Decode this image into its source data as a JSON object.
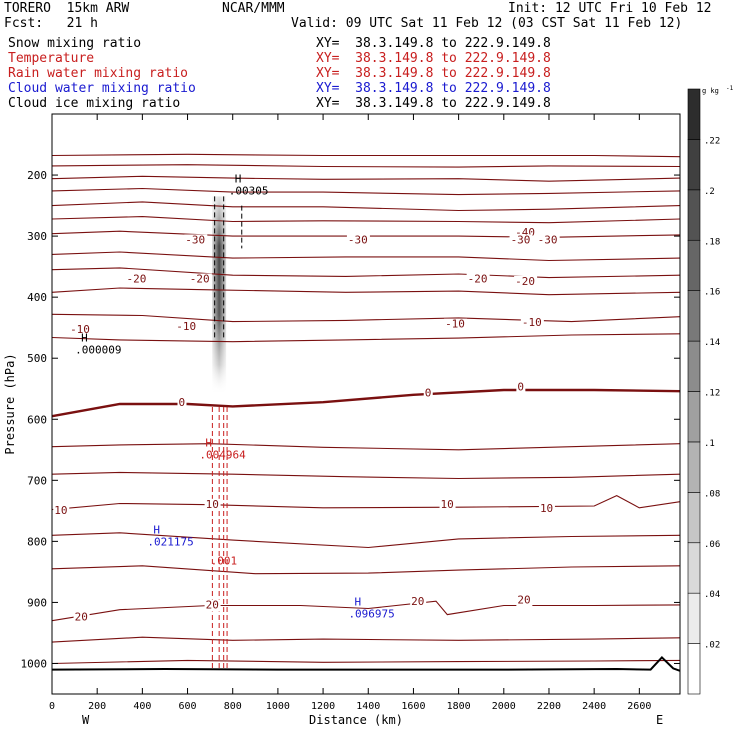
{
  "header": {
    "model": "TORERO  15km ARW",
    "center": "NCAR/MMM",
    "init": "Init: 12 UTC Fri 10 Feb 12",
    "fcst": "Fcst:   21 h",
    "valid": "Valid: 09 UTC Sat 11 Feb 12 (03 CST Sat 11 Feb 12)"
  },
  "fields": [
    {
      "label": "Snow mixing ratio",
      "xy": "XY=  38.3.149.8 to 222.9.149.8",
      "color": "#000000"
    },
    {
      "label": "Temperature",
      "xy": "XY=  38.3.149.8 to 222.9.149.8",
      "color": "#c81e1e"
    },
    {
      "label": "Rain water mixing ratio",
      "xy": "XY=  38.3.149.8 to 222.9.149.8",
      "color": "#c81e1e"
    },
    {
      "label": "Cloud water mixing ratio",
      "xy": "XY=  38.3.149.8 to 222.9.149.8",
      "color": "#1a1ad0"
    },
    {
      "label": "Cloud ice mixing ratio",
      "xy": "XY=  38.3.149.8 to 222.9.149.8",
      "color": "#000000"
    }
  ],
  "chart_data": {
    "type": "contour cross-section",
    "xlabel": "Distance (km)",
    "ylabel": "Pressure (hPa)",
    "xlim": [
      0,
      2780
    ],
    "ylim": [
      1050,
      100
    ],
    "x_ticks": [
      0,
      200,
      400,
      600,
      800,
      1000,
      1200,
      1400,
      1600,
      1800,
      2000,
      2200,
      2400,
      2600
    ],
    "y_ticks": [
      200,
      300,
      400,
      500,
      600,
      700,
      800,
      900,
      1000
    ],
    "x_end_labels": {
      "left": "W",
      "right": "E"
    },
    "colorbar": {
      "unit": "g kg",
      "unit_exp": "-1",
      "ticks": [
        ".02",
        ".04",
        ".06",
        ".08",
        ".1",
        ".12",
        ".14",
        ".16",
        ".18",
        ".2",
        ".22"
      ],
      "tick_values": [
        0.02,
        0.04,
        0.06,
        0.08,
        0.1,
        0.12,
        0.14,
        0.16,
        0.18,
        0.2,
        0.22
      ],
      "range": [
        0,
        0.24
      ]
    },
    "temperature_isotherms": [
      {
        "label": "-40",
        "points": [
          [
            0,
            168
          ],
          [
            600,
            166
          ],
          [
            1200,
            168
          ],
          [
            1800,
            168
          ],
          [
            2400,
            168
          ],
          [
            2780,
            170
          ]
        ]
      },
      {
        "label": "-40",
        "points": [
          [
            0,
            185
          ],
          [
            600,
            183
          ],
          [
            1200,
            186
          ],
          [
            1800,
            187
          ],
          [
            2200,
            185
          ],
          [
            2780,
            186
          ]
        ]
      },
      {
        "label": "-40",
        "points": [
          [
            0,
            206
          ],
          [
            400,
            202
          ],
          [
            800,
            205
          ],
          [
            1200,
            207
          ],
          [
            1800,
            206
          ],
          [
            2200,
            210
          ],
          [
            2780,
            205
          ]
        ]
      },
      {
        "label": "-40",
        "points": [
          [
            0,
            226
          ],
          [
            400,
            222
          ],
          [
            800,
            228
          ],
          [
            1200,
            228
          ],
          [
            1800,
            232
          ],
          [
            2200,
            230
          ],
          [
            2780,
            226
          ]
        ]
      },
      {
        "label": "-30",
        "points": [
          [
            0,
            250
          ],
          [
            400,
            244
          ],
          [
            800,
            252
          ],
          [
            1200,
            252
          ],
          [
            1800,
            258
          ],
          [
            2200,
            256
          ],
          [
            2780,
            250
          ]
        ]
      },
      {
        "label": "-30",
        "points": [
          [
            0,
            272
          ],
          [
            400,
            268
          ],
          [
            800,
            276
          ],
          [
            1200,
            275
          ],
          [
            1800,
            276
          ],
          [
            2200,
            278
          ],
          [
            2780,
            272
          ]
        ]
      },
      {
        "label": "-30",
        "points": [
          [
            0,
            296
          ],
          [
            300,
            292
          ],
          [
            800,
            300
          ],
          [
            1300,
            300
          ],
          [
            1800,
            300
          ],
          [
            2200,
            302
          ],
          [
            2780,
            298
          ]
        ]
      },
      {
        "label": "-20",
        "points": [
          [
            0,
            330
          ],
          [
            300,
            326
          ],
          [
            800,
            336
          ],
          [
            1300,
            334
          ],
          [
            1800,
            334
          ],
          [
            2200,
            340
          ],
          [
            2780,
            336
          ]
        ]
      },
      {
        "label": "-20",
        "points": [
          [
            0,
            355
          ],
          [
            300,
            352
          ],
          [
            800,
            364
          ],
          [
            1300,
            366
          ],
          [
            1800,
            362
          ],
          [
            2200,
            368
          ],
          [
            2780,
            364
          ]
        ]
      },
      {
        "label": "-20",
        "points": [
          [
            0,
            392
          ],
          [
            300,
            385
          ],
          [
            700,
            388
          ],
          [
            1300,
            392
          ],
          [
            1800,
            390
          ],
          [
            2200,
            396
          ],
          [
            2780,
            392
          ]
        ]
      },
      {
        "label": "-10",
        "points": [
          [
            0,
            428
          ],
          [
            400,
            430
          ],
          [
            800,
            440
          ],
          [
            1300,
            438
          ],
          [
            1800,
            434
          ],
          [
            2300,
            440
          ],
          [
            2780,
            432
          ]
        ]
      },
      {
        "label": "-10",
        "points": [
          [
            0,
            466
          ],
          [
            300,
            470
          ],
          [
            800,
            473
          ],
          [
            1300,
            470
          ],
          [
            1800,
            467
          ],
          [
            2300,
            462
          ],
          [
            2780,
            460
          ]
        ]
      },
      {
        "label": "0",
        "points": [
          [
            0,
            595
          ],
          [
            300,
            575
          ],
          [
            600,
            575
          ],
          [
            800,
            579
          ],
          [
            1200,
            572
          ],
          [
            1600,
            560
          ],
          [
            2000,
            552
          ],
          [
            2400,
            552
          ],
          [
            2780,
            554
          ]
        ]
      },
      {
        "label": "10",
        "points": [
          [
            0,
            645
          ],
          [
            300,
            642
          ],
          [
            700,
            640
          ],
          [
            1200,
            646
          ],
          [
            1800,
            650
          ],
          [
            2300,
            645
          ],
          [
            2780,
            640
          ]
        ]
      },
      {
        "label": "10",
        "points": [
          [
            0,
            690
          ],
          [
            300,
            687
          ],
          [
            800,
            690
          ],
          [
            1300,
            694
          ],
          [
            1800,
            697
          ],
          [
            2300,
            695
          ],
          [
            2780,
            690
          ]
        ]
      },
      {
        "label": "10",
        "points": [
          [
            0,
            748
          ],
          [
            300,
            738
          ],
          [
            700,
            740
          ],
          [
            1200,
            745
          ],
          [
            1800,
            744
          ],
          [
            2400,
            742
          ],
          [
            2500,
            725
          ],
          [
            2600,
            745
          ],
          [
            2780,
            735
          ]
        ]
      },
      {
        "label": "10",
        "points": [
          [
            0,
            790
          ],
          [
            300,
            786
          ],
          [
            800,
            798
          ],
          [
            1400,
            810
          ],
          [
            1800,
            796
          ],
          [
            2300,
            792
          ],
          [
            2780,
            790
          ]
        ]
      },
      {
        "label": "20",
        "points": [
          [
            0,
            845
          ],
          [
            400,
            840
          ],
          [
            900,
            853
          ],
          [
            1400,
            852
          ],
          [
            1800,
            847
          ],
          [
            2300,
            842
          ],
          [
            2780,
            840
          ]
        ]
      },
      {
        "label": "20",
        "points": [
          [
            0,
            930
          ],
          [
            300,
            912
          ],
          [
            700,
            905
          ],
          [
            1100,
            905
          ],
          [
            1400,
            910
          ],
          [
            1700,
            898
          ],
          [
            1750,
            920
          ],
          [
            2000,
            905
          ],
          [
            2400,
            905
          ],
          [
            2780,
            904
          ]
        ]
      },
      {
        "label": "",
        "points": [
          [
            0,
            965
          ],
          [
            400,
            957
          ],
          [
            800,
            962
          ],
          [
            1200,
            960
          ],
          [
            1800,
            962
          ],
          [
            2400,
            960
          ],
          [
            2780,
            958
          ]
        ]
      },
      {
        "label": "",
        "points": [
          [
            0,
            1000
          ],
          [
            600,
            995
          ],
          [
            1200,
            998
          ],
          [
            1800,
            997
          ],
          [
            2400,
            996
          ],
          [
            2780,
            995
          ]
        ]
      }
    ],
    "contour_labels": [
      {
        "text": "-40",
        "x": 2050,
        "y": 300,
        "color": "#7a1010"
      },
      {
        "text": "-30",
        "x": 590,
        "y": 312,
        "color": "#7a1010"
      },
      {
        "text": "-30",
        "x": 1310,
        "y": 312,
        "color": "#7a1010"
      },
      {
        "text": "-30",
        "x": 2030,
        "y": 312,
        "color": "#7a1010"
      },
      {
        "text": "-30",
        "x": 2150,
        "y": 312,
        "color": "#7a1010"
      },
      {
        "text": "-20",
        "x": 330,
        "y": 376,
        "color": "#7a1010"
      },
      {
        "text": "-20",
        "x": 610,
        "y": 376,
        "color": "#7a1010"
      },
      {
        "text": "-20",
        "x": 1840,
        "y": 376,
        "color": "#7a1010"
      },
      {
        "text": "-20",
        "x": 2050,
        "y": 380,
        "color": "#7a1010"
      },
      {
        "text": "-10",
        "x": 80,
        "y": 459,
        "color": "#7a1010"
      },
      {
        "text": "-10",
        "x": 550,
        "y": 454,
        "color": "#7a1010"
      },
      {
        "text": "-10",
        "x": 1740,
        "y": 450,
        "color": "#7a1010"
      },
      {
        "text": "-10",
        "x": 2080,
        "y": 447,
        "color": "#7a1010"
      },
      {
        "text": "0",
        "x": 560,
        "y": 578,
        "color": "#7a1010"
      },
      {
        "text": "0",
        "x": 1650,
        "y": 563,
        "color": "#7a1010"
      },
      {
        "text": "0",
        "x": 2060,
        "y": 553,
        "color": "#7a1010"
      },
      {
        "text": "10",
        "x": 10,
        "y": 755,
        "color": "#7a1010"
      },
      {
        "text": "10",
        "x": 680,
        "y": 745,
        "color": "#7a1010"
      },
      {
        "text": "10",
        "x": 1720,
        "y": 745,
        "color": "#7a1010"
      },
      {
        "text": "10",
        "x": 2160,
        "y": 752,
        "color": "#7a1010"
      },
      {
        "text": "20",
        "x": 680,
        "y": 910,
        "color": "#7a1010"
      },
      {
        "text": "20",
        "x": 1590,
        "y": 904,
        "color": "#7a1010"
      },
      {
        "text": "20",
        "x": 2060,
        "y": 902,
        "color": "#7a1010"
      },
      {
        "text": "20",
        "x": 100,
        "y": 930,
        "color": "#7a1010"
      }
    ],
    "maxima": [
      {
        "symbol": "H",
        "value": ".00305",
        "x": 800,
        "y": 232,
        "color": "#000000"
      },
      {
        "symbol": "H",
        "value": ".000009",
        "x": 120,
        "y": 492,
        "color": "#000000"
      },
      {
        "symbol": "H",
        "value": ".004964",
        "x": 670,
        "y": 664,
        "color": "#c81e1e"
      },
      {
        "symbol": "",
        "value": ".001",
        "x": 720,
        "y": 838,
        "color": "#c81e1e"
      },
      {
        "symbol": "H",
        "value": ".021175",
        "x": 440,
        "y": 807,
        "color": "#1a1ad0"
      },
      {
        "symbol": "H",
        "value": ".096975",
        "x": 1330,
        "y": 925,
        "color": "#1a1ad0"
      }
    ],
    "snow_shading": {
      "x_center": 740,
      "top_hPa": 235,
      "bottom_hPa": 560,
      "peak_value": 0.22
    },
    "terrain": [
      [
        0,
        1010
      ],
      [
        500,
        1009
      ],
      [
        1000,
        1010
      ],
      [
        1500,
        1010
      ],
      [
        2000,
        1010
      ],
      [
        2500,
        1009
      ],
      [
        2650,
        1010
      ],
      [
        2700,
        990
      ],
      [
        2750,
        1008
      ],
      [
        2780,
        1012
      ]
    ]
  }
}
